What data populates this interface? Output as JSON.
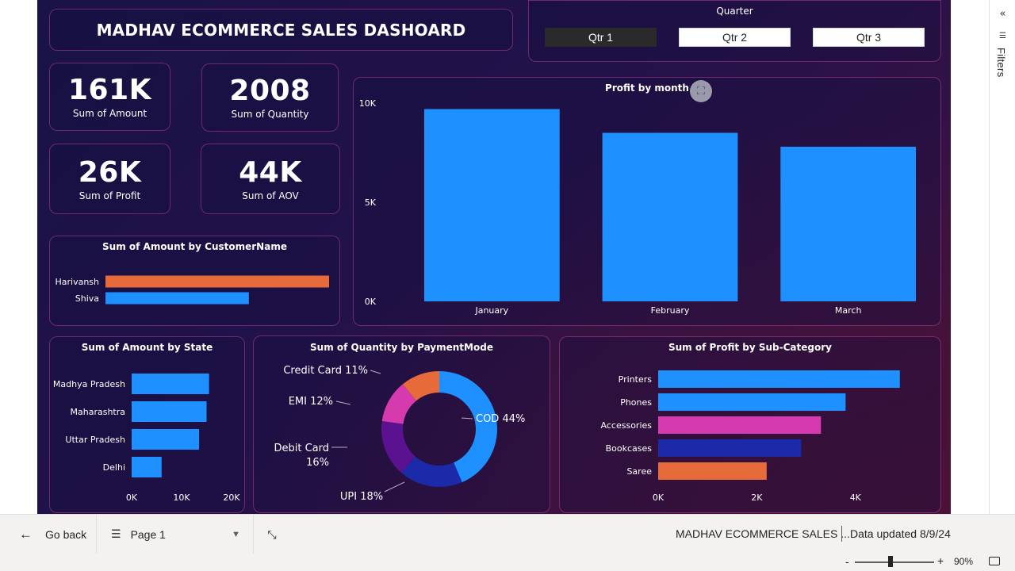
{
  "dashboard": {
    "title": "MADHAV ECOMMERCE SALES DASHOARD"
  },
  "slicer": {
    "title": "Quarter",
    "options": [
      "Qtr 1",
      "Qtr 2",
      "Qtr 3"
    ],
    "selected": "Qtr 1"
  },
  "kpis": [
    {
      "value": "161K",
      "label": "Sum of Amount"
    },
    {
      "value": "2008",
      "label": "Sum of Quantity"
    },
    {
      "value": "26K",
      "label": "Sum of Profit"
    },
    {
      "value": "44K",
      "label": "Sum of AOV"
    }
  ],
  "filters_pane": {
    "label": "Filters",
    "collapse_glyph": "«"
  },
  "chart_data": [
    {
      "type": "bar",
      "orientation": "vertical",
      "title": "Profit by month",
      "categories": [
        "January",
        "February",
        "March"
      ],
      "values": [
        9700,
        8500,
        7800
      ],
      "yticks": [
        "0K",
        "5K",
        "10K"
      ],
      "ylim": [
        0,
        10000
      ],
      "color": "#1e90ff",
      "grid": false
    },
    {
      "type": "bar",
      "orientation": "horizontal",
      "title": "Sum of Amount by CustomerName",
      "categories": [
        "Harivansh",
        "Shiva"
      ],
      "values": [
        9200,
        5900
      ],
      "colors": [
        "#e66a3a",
        "#1e90ff"
      ],
      "xlim": [
        0,
        9200
      ]
    },
    {
      "type": "bar",
      "orientation": "horizontal",
      "title": "Sum of Amount by State",
      "categories": [
        "Madhya Pradesh",
        "Maharashtra",
        "Uttar Pradesh",
        "Delhi"
      ],
      "values": [
        15500,
        15000,
        13500,
        6000
      ],
      "xticks": [
        "0K",
        "10K",
        "20K"
      ],
      "xlim": [
        0,
        20000
      ],
      "color": "#1e90ff"
    },
    {
      "type": "pie",
      "variant": "donut",
      "title": "Sum of Quantity by PaymentMode",
      "slices": [
        {
          "label": "COD",
          "value": 44,
          "display": "COD 44%",
          "color": "#1e90ff"
        },
        {
          "label": "UPI",
          "value": 18,
          "display": "UPI 18%",
          "color": "#1a2aa8"
        },
        {
          "label": "Debit Card",
          "value": 16,
          "display": "Debit Card 16%",
          "display_line1": "Debit Card",
          "display_line2": "16%",
          "color": "#5a1290"
        },
        {
          "label": "EMI",
          "value": 12,
          "display": "EMI 12%",
          "color": "#d63aaf"
        },
        {
          "label": "Credit Card",
          "value": 11,
          "display": "Credit Card 11%",
          "color": "#e66a3a"
        }
      ]
    },
    {
      "type": "bar",
      "orientation": "horizontal",
      "title": "Sum of Profit by Sub-Category",
      "categories": [
        "Printers",
        "Phones",
        "Accessories",
        "Bookcases",
        "Saree"
      ],
      "values": [
        4900,
        3800,
        3300,
        2900,
        2200
      ],
      "colors": [
        "#1e90ff",
        "#1e90ff",
        "#d63aaf",
        "#1a2aa8",
        "#e66a3a"
      ],
      "xticks": [
        "0K",
        "2K",
        "4K"
      ],
      "xlim": [
        0,
        5000
      ]
    }
  ],
  "bottom_bar": {
    "go_back": "Go back",
    "page": "Page 1",
    "report_title": "MADHAV ECOMMERCE SALES ...",
    "data_updated": "Data updated 8/9/24"
  },
  "zoom": {
    "minus": "-",
    "plus": "+",
    "level": "90%",
    "value_percent": 90
  }
}
